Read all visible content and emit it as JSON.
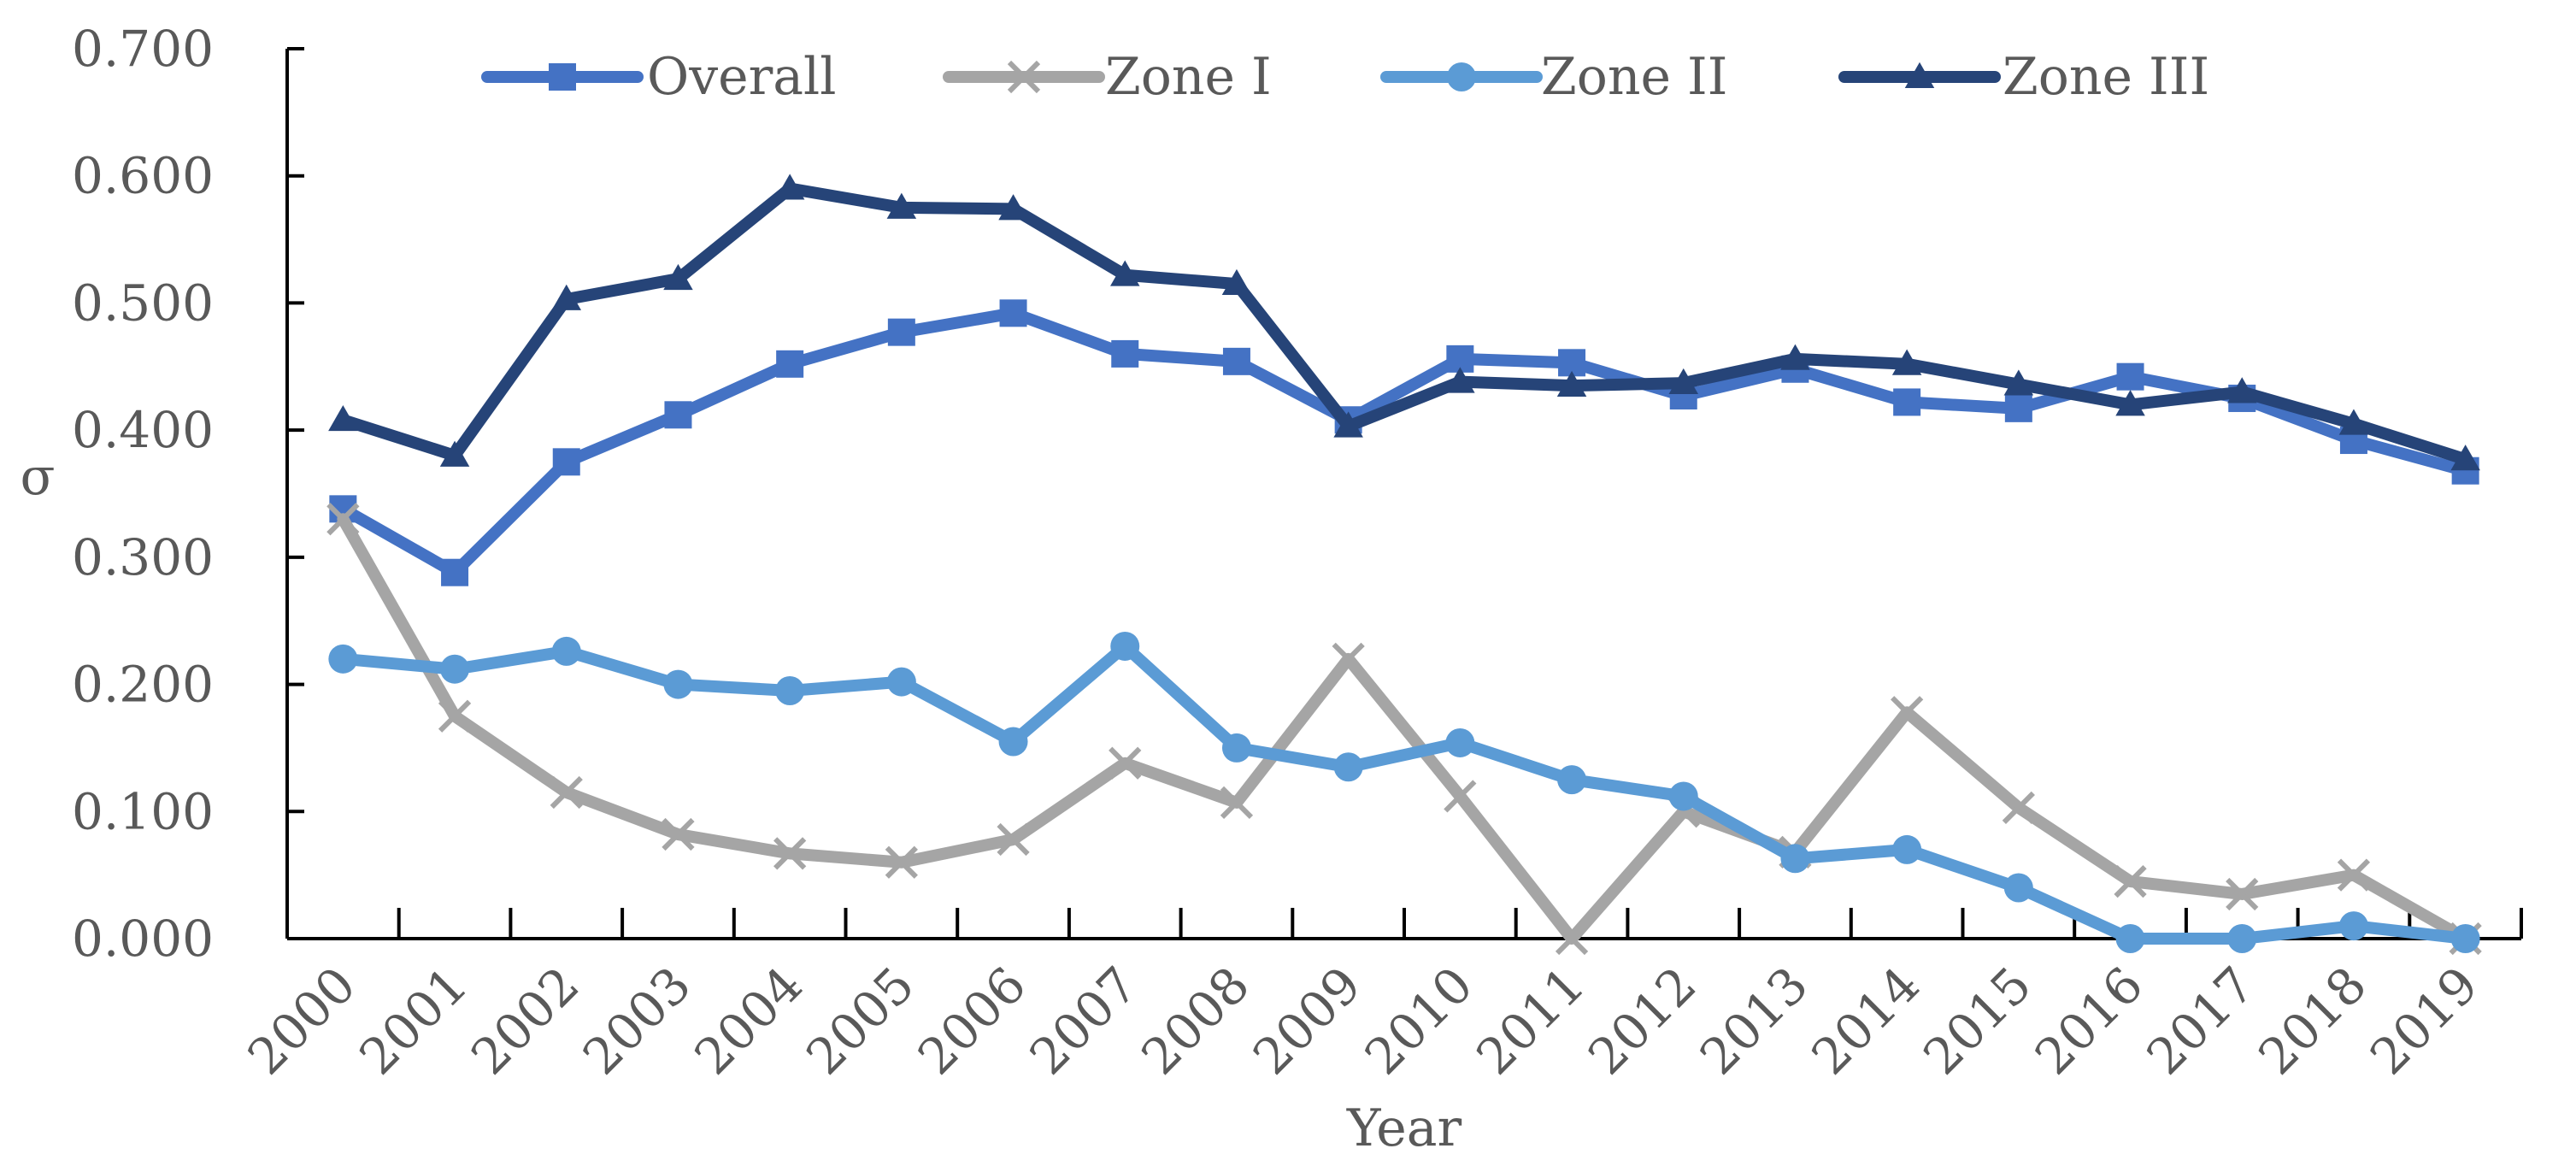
{
  "chart_data": {
    "type": "line",
    "title": "",
    "xlabel": "Year",
    "ylabel": "σ",
    "ylim": [
      0,
      0.7
    ],
    "yticks": [
      "0.000",
      "0.100",
      "0.200",
      "0.300",
      "0.400",
      "0.500",
      "0.600",
      "0.700"
    ],
    "categories": [
      "2000",
      "2001",
      "2002",
      "2003",
      "2004",
      "2005",
      "2006",
      "2007",
      "2008",
      "2009",
      "2010",
      "2011",
      "2012",
      "2013",
      "2014",
      "2015",
      "2016",
      "2017",
      "2018",
      "2019"
    ],
    "legend_position": "top",
    "grid": false,
    "series": [
      {
        "name": "Overall",
        "color": "#4472C4",
        "marker": "square",
        "values": [
          0.338,
          0.288,
          0.375,
          0.412,
          0.452,
          0.477,
          0.492,
          0.46,
          0.454,
          0.408,
          0.456,
          0.453,
          0.427,
          0.448,
          0.422,
          0.417,
          0.442,
          0.425,
          0.392,
          0.368
        ]
      },
      {
        "name": "Zone I",
        "color": "#A5A5A5",
        "marker": "x",
        "values": [
          0.33,
          0.175,
          0.115,
          0.082,
          0.067,
          0.06,
          0.078,
          0.138,
          0.107,
          0.22,
          0.112,
          0.0,
          0.1,
          0.068,
          0.178,
          0.103,
          0.045,
          0.035,
          0.05,
          0.0
        ]
      },
      {
        "name": "Zone II",
        "color": "#5B9BD5",
        "marker": "circle",
        "values": [
          0.22,
          0.212,
          0.226,
          0.2,
          0.195,
          0.202,
          0.155,
          0.23,
          0.15,
          0.135,
          0.154,
          0.125,
          0.112,
          0.063,
          0.07,
          0.04,
          0.0,
          0.0,
          0.01,
          0.0
        ]
      },
      {
        "name": "Zone III",
        "color": "#264478",
        "marker": "triangle",
        "values": [
          0.408,
          0.38,
          0.503,
          0.519,
          0.59,
          0.575,
          0.574,
          0.522,
          0.515,
          0.403,
          0.438,
          0.435,
          0.437,
          0.456,
          0.452,
          0.436,
          0.42,
          0.43,
          0.405,
          0.377
        ]
      }
    ]
  }
}
